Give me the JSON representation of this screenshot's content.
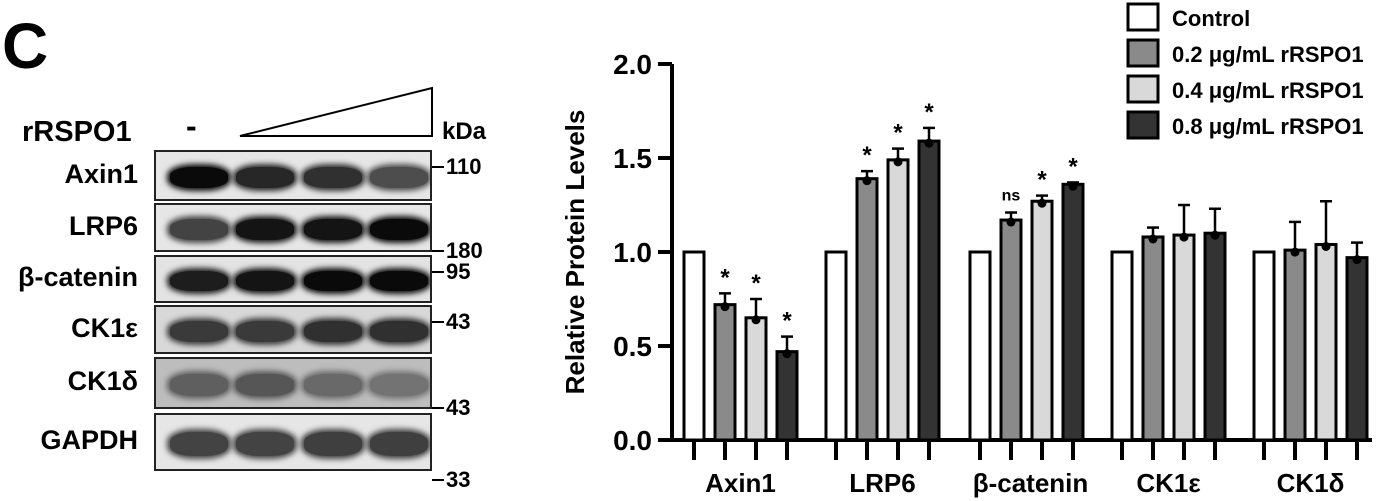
{
  "panel": {
    "letter": "C",
    "treatment_label": "rRSPO1",
    "control_mark": "-",
    "kda_label": "kDa"
  },
  "blots": [
    {
      "label": "Axin1",
      "mw": "110",
      "band_darkness": [
        1.0,
        0.85,
        0.8,
        0.65
      ],
      "background": "#e6e6e6"
    },
    {
      "label": "LRP6",
      "mw": "180",
      "band_darkness": [
        0.7,
        0.95,
        0.95,
        1.0
      ],
      "background": "#e6e6e6"
    },
    {
      "label": "β-catenin",
      "mw": "95",
      "band_darkness": [
        0.9,
        0.95,
        1.0,
        1.0
      ],
      "background": "#e3e3e3"
    },
    {
      "label": "CK1ε",
      "mw": "43",
      "band_darkness": [
        0.75,
        0.75,
        0.8,
        0.8
      ],
      "background": "#d8d8d8"
    },
    {
      "label": "CK1δ",
      "mw": "43",
      "band_darkness": [
        0.55,
        0.6,
        0.5,
        0.45
      ],
      "background": "#bdbdbd"
    },
    {
      "label": "GAPDH",
      "mw": "33",
      "band_darkness": [
        0.7,
        0.7,
        0.72,
        0.72
      ],
      "background": "#e6e6e6"
    }
  ],
  "chart_data": {
    "type": "bar",
    "ylabel": "Relative Protein Levels",
    "xlabel": "",
    "ylim": [
      0,
      2.0
    ],
    "yticks": [
      "0.0",
      "0.5",
      "1.0",
      "1.5",
      "2.0"
    ],
    "categories": [
      "Axin1",
      "LRP6",
      "β-catenin",
      "CK1ε",
      "CK1δ"
    ],
    "legend_position": "top-right",
    "series": [
      {
        "name": "Control",
        "color": "#ffffff",
        "values": [
          1.0,
          1.0,
          1.0,
          1.0,
          1.0
        ],
        "errors": [
          0.0,
          0.0,
          0.0,
          0.0,
          0.0
        ],
        "annotations": [
          "",
          "",
          "",
          "",
          ""
        ]
      },
      {
        "name": "0.2 μg/mL rRSPO1",
        "color": "#8a8a8a",
        "values": [
          0.72,
          1.39,
          1.17,
          1.08,
          1.01
        ],
        "errors": [
          0.06,
          0.04,
          0.04,
          0.05,
          0.15
        ],
        "annotations": [
          "*",
          "*",
          "ns",
          "",
          ""
        ]
      },
      {
        "name": "0.4 μg/mL rRSPO1",
        "color": "#d9d9d9",
        "values": [
          0.65,
          1.49,
          1.27,
          1.09,
          1.04
        ],
        "errors": [
          0.1,
          0.06,
          0.03,
          0.16,
          0.23
        ],
        "annotations": [
          "*",
          "*",
          "*",
          "",
          ""
        ]
      },
      {
        "name": "0.8 μg/mL rRSPO1",
        "color": "#333333",
        "values": [
          0.47,
          1.59,
          1.36,
          1.1,
          0.97
        ],
        "errors": [
          0.08,
          0.07,
          0.01,
          0.13,
          0.08
        ],
        "annotations": [
          "*",
          "*",
          "*",
          "",
          ""
        ]
      }
    ]
  }
}
